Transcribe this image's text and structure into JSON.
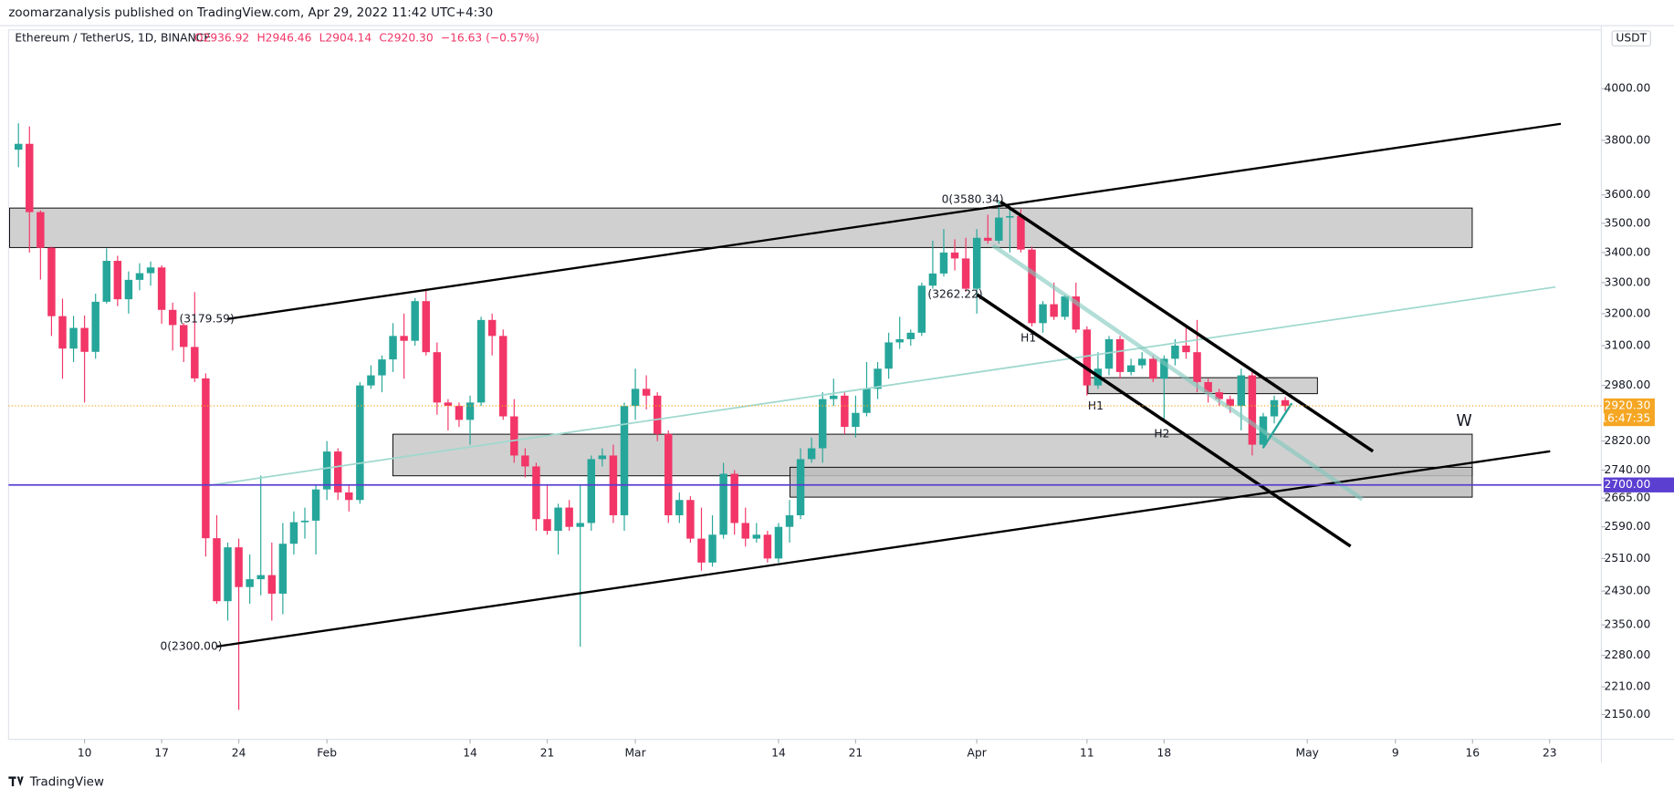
{
  "header": {
    "publisher": "zoomarzanalysis published on TradingView.com, Apr 29, 2022 11:42 UTC+4:30",
    "footer": "TradingView"
  },
  "chart_data": {
    "type": "candlestick",
    "title": "Ethereum / TetherUS, 1D, BINANCE",
    "legend_ohlc": [
      "O2936.92",
      "H2946.46",
      "L2904.14",
      "C2920.30",
      "−16.63 (−0.57%)"
    ],
    "currency": "USDT",
    "up_color": "#26a69a",
    "down_color": "#f23667",
    "log_scale": true,
    "grid": false,
    "x": [
      4,
      5,
      6,
      7,
      8,
      9,
      10,
      11,
      12,
      13,
      14,
      15,
      16,
      17,
      18,
      19,
      20,
      21,
      22,
      23,
      24,
      25,
      26,
      27,
      28,
      29,
      30,
      31,
      32,
      33,
      34,
      35,
      36,
      37,
      38,
      39,
      40,
      41,
      42,
      43,
      44,
      45,
      46,
      47,
      48,
      49,
      50,
      51,
      52,
      53,
      54,
      55,
      56,
      57,
      58,
      59,
      60,
      61,
      62,
      63,
      64,
      65,
      66,
      67,
      68,
      69,
      70,
      71,
      72,
      73,
      74,
      75,
      76,
      77,
      78,
      79,
      80,
      81,
      82,
      83,
      84,
      85,
      86,
      87,
      88,
      89,
      90,
      91,
      92,
      93,
      94,
      95,
      96,
      97,
      98,
      99,
      100,
      101,
      102,
      103,
      104,
      105,
      106,
      107,
      108,
      109,
      110,
      111,
      112,
      113,
      114,
      115,
      116,
      117,
      118,
      119
    ],
    "open": [
      3765,
      3787,
      3539,
      3416,
      3192,
      3091,
      3155,
      3081,
      3238,
      3372,
      3246,
      3309,
      3331,
      3350,
      3212,
      3164,
      3096,
      3001,
      2561,
      2406,
      2538,
      2440,
      2459,
      2469,
      2424,
      2547,
      2602,
      2606,
      2688,
      2791,
      2680,
      2660,
      2980,
      3010,
      3058,
      3130,
      3115,
      3240,
      3080,
      2930,
      2920,
      2880,
      2930,
      3180,
      3130,
      2890,
      2780,
      2750,
      2610,
      2580,
      2640,
      2590,
      2600,
      2770,
      2780,
      2620,
      2920,
      2970,
      2950,
      2840,
      2620,
      2660,
      2560,
      2500,
      2570,
      2730,
      2600,
      2560,
      2570,
      2510,
      2590,
      2620,
      2770,
      2800,
      2940,
      2950,
      2860,
      2900,
      2970,
      3030,
      3110,
      3120,
      3140,
      3290,
      3330,
      3400,
      3380,
      3280,
      3450,
      3440,
      3520,
      3525,
      3410,
      3170,
      3230,
      3190,
      3255,
      3150,
      2980,
      3030,
      3120,
      3020,
      3040,
      3060,
      3000,
      3060,
      3100,
      3080,
      2990,
      2960,
      2940,
      2920,
      3010,
      2810,
      2890,
      2936.92
    ],
    "high": [
      3865,
      3853,
      3545,
      3420,
      3248,
      3193,
      3194,
      3264,
      3414,
      3389,
      3337,
      3364,
      3370,
      3357,
      3235,
      3170,
      3269,
      3016,
      2620,
      2550,
      2560,
      2520,
      2725,
      2550,
      2600,
      2630,
      2640,
      2700,
      2820,
      2800,
      2700,
      2990,
      3040,
      3070,
      3170,
      3200,
      3250,
      3280,
      3110,
      2940,
      2930,
      2950,
      3190,
      3200,
      3150,
      2940,
      2800,
      2760,
      2700,
      2650,
      2660,
      2700,
      2780,
      2800,
      2810,
      2930,
      3030,
      3010,
      2960,
      2850,
      2680,
      2670,
      2640,
      2620,
      2760,
      2740,
      2640,
      2600,
      2580,
      2600,
      2660,
      2800,
      2830,
      2960,
      3000,
      2960,
      2950,
      3050,
      3050,
      3140,
      3190,
      3150,
      3300,
      3440,
      3480,
      3445,
      3450,
      3480,
      3530,
      3580,
      3550,
      3550,
      3420,
      3240,
      3300,
      3260,
      3300,
      3160,
      3080,
      3130,
      3130,
      3060,
      3080,
      3070,
      3070,
      3120,
      3160,
      3180,
      3000,
      2970,
      2950,
      3030,
      3030,
      2900,
      2950,
      2946.46
    ],
    "low": [
      3700,
      3400,
      3310,
      3130,
      3000,
      3050,
      2930,
      3060,
      3232,
      3224,
      3200,
      3275,
      3290,
      3168,
      3085,
      3050,
      2990,
      2515,
      2400,
      2360,
      2160,
      2400,
      2420,
      2360,
      2375,
      2520,
      2560,
      2520,
      2660,
      2660,
      2630,
      2650,
      2970,
      2960,
      3020,
      3000,
      3100,
      3070,
      2895,
      2850,
      2860,
      2810,
      2920,
      3070,
      2880,
      2760,
      2720,
      2580,
      2570,
      2520,
      2580,
      2300,
      2580,
      2750,
      2600,
      2580,
      2880,
      2910,
      2820,
      2600,
      2600,
      2550,
      2480,
      2490,
      2560,
      2570,
      2540,
      2550,
      2500,
      2500,
      2550,
      2610,
      2760,
      2760,
      2920,
      2840,
      2830,
      2890,
      2940,
      3000,
      3090,
      3100,
      3130,
      3280,
      3320,
      3340,
      3270,
      3200,
      3430,
      3430,
      3400,
      3400,
      3160,
      3140,
      3180,
      3180,
      3140,
      2950,
      2970,
      3010,
      3000,
      3010,
      3030,
      2990,
      2880,
      3040,
      3060,
      2960,
      2930,
      2920,
      2900,
      2850,
      2780,
      2800,
      2870,
      2904.14
    ],
    "close": [
      3787,
      3539,
      3416,
      3192,
      3091,
      3155,
      3081,
      3238,
      3372,
      3246,
      3309,
      3331,
      3350,
      3212,
      3164,
      3096,
      3001,
      2561,
      2406,
      2538,
      2440,
      2459,
      2469,
      2424,
      2547,
      2602,
      2606,
      2688,
      2791,
      2680,
      2660,
      2980,
      3010,
      3058,
      3130,
      3115,
      3240,
      3080,
      2930,
      2920,
      2880,
      2930,
      3180,
      3130,
      2890,
      2780,
      2750,
      2610,
      2580,
      2640,
      2590,
      2600,
      2770,
      2780,
      2620,
      2920,
      2970,
      2950,
      2840,
      2620,
      2660,
      2560,
      2500,
      2570,
      2730,
      2600,
      2560,
      2570,
      2510,
      2590,
      2620,
      2770,
      2800,
      2940,
      2950,
      2860,
      2900,
      2970,
      3030,
      3110,
      3120,
      3140,
      3290,
      3330,
      3400,
      3380,
      3280,
      3450,
      3440,
      3520,
      3525,
      3410,
      3170,
      3230,
      3190,
      3255,
      3150,
      2980,
      3030,
      3120,
      3020,
      3040,
      3060,
      3000,
      3060,
      3100,
      3080,
      2990,
      2960,
      2940,
      2920,
      3010,
      2810,
      2890,
      2936.92,
      2920.3
    ],
    "xlim": [
      3.1,
      147.7
    ],
    "xticks": [
      {
        "value": 10,
        "label": "10"
      },
      {
        "value": 17,
        "label": "17"
      },
      {
        "value": 24,
        "label": "24"
      },
      {
        "value": 32,
        "label": "Feb"
      },
      {
        "value": 45,
        "label": "14"
      },
      {
        "value": 52,
        "label": "21"
      },
      {
        "value": 60,
        "label": "Mar"
      },
      {
        "value": 73,
        "label": "14"
      },
      {
        "value": 80,
        "label": "21"
      },
      {
        "value": 91,
        "label": "Apr"
      },
      {
        "value": 101,
        "label": "11"
      },
      {
        "value": 108,
        "label": "18"
      },
      {
        "value": 121,
        "label": "May"
      },
      {
        "value": 129,
        "label": "9"
      },
      {
        "value": 136,
        "label": "16"
      },
      {
        "value": 143,
        "label": "23"
      }
    ],
    "ylim": [
      2098,
      4240
    ],
    "yticks": [
      {
        "value": 4000,
        "label": "4000.00"
      },
      {
        "value": 3800,
        "label": "3800.00"
      },
      {
        "value": 3600,
        "label": "3600.00"
      },
      {
        "value": 3500,
        "label": "3500.00"
      },
      {
        "value": 3400,
        "label": "3400.00"
      },
      {
        "value": 3300,
        "label": "3300.00"
      },
      {
        "value": 3200,
        "label": "3200.00"
      },
      {
        "value": 3100,
        "label": "3100.00"
      },
      {
        "value": 2980,
        "label": "2980.00"
      },
      {
        "value": 2820,
        "label": "2820.00"
      },
      {
        "value": 2740,
        "label": "2740.00"
      },
      {
        "value": 2665,
        "label": "2665.00"
      },
      {
        "value": 2590,
        "label": "2590.00"
      },
      {
        "value": 2510,
        "label": "2510.00"
      },
      {
        "value": 2430,
        "label": "2430.00"
      },
      {
        "value": 2350,
        "label": "2350.00"
      },
      {
        "value": 2280,
        "label": "2280.00"
      },
      {
        "value": 2210,
        "label": "2210.00"
      },
      {
        "value": 2150,
        "label": "2150.00"
      }
    ],
    "price_tag": {
      "value": 2920.3,
      "label": "2920.30",
      "countdown": "16:47:35",
      "color": "#f5a623"
    },
    "hline": {
      "value": 2700,
      "label": "2700.00",
      "color": "#5b3fd1"
    },
    "annotations": [
      "0(3580.34)",
      "(3262.22)",
      "(3179.59)",
      "0(2300.00)",
      "H1",
      "H1",
      "H2",
      "W"
    ]
  }
}
